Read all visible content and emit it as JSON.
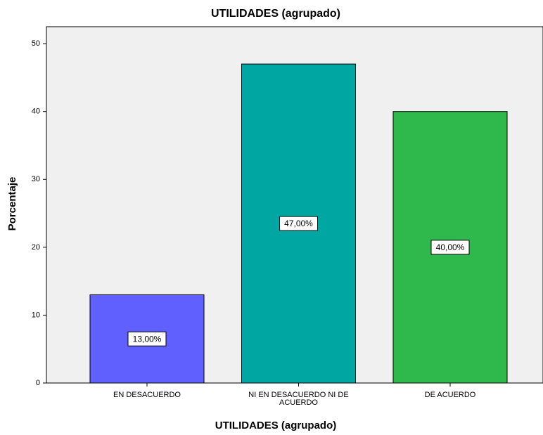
{
  "chart_data": {
    "type": "bar",
    "title": "UTILIDADES (agrupado)",
    "x_label": "UTILIDADES (agrupado)",
    "y_label": "Porcentaje",
    "categories": [
      "EN DESACUERDO",
      "NI EN DESACUERDO NI DE ACUERDO",
      "DE ACUERDO"
    ],
    "values": [
      13,
      47,
      40
    ],
    "value_labels": [
      "13,00%",
      "47,00%",
      "40,00%"
    ],
    "colors": [
      "#6060ff",
      "#00a6a2",
      "#2fb84b"
    ],
    "ylim": [
      0,
      52.5
    ],
    "yticks": [
      0,
      10,
      20,
      30,
      40,
      50
    ],
    "grid": false
  }
}
